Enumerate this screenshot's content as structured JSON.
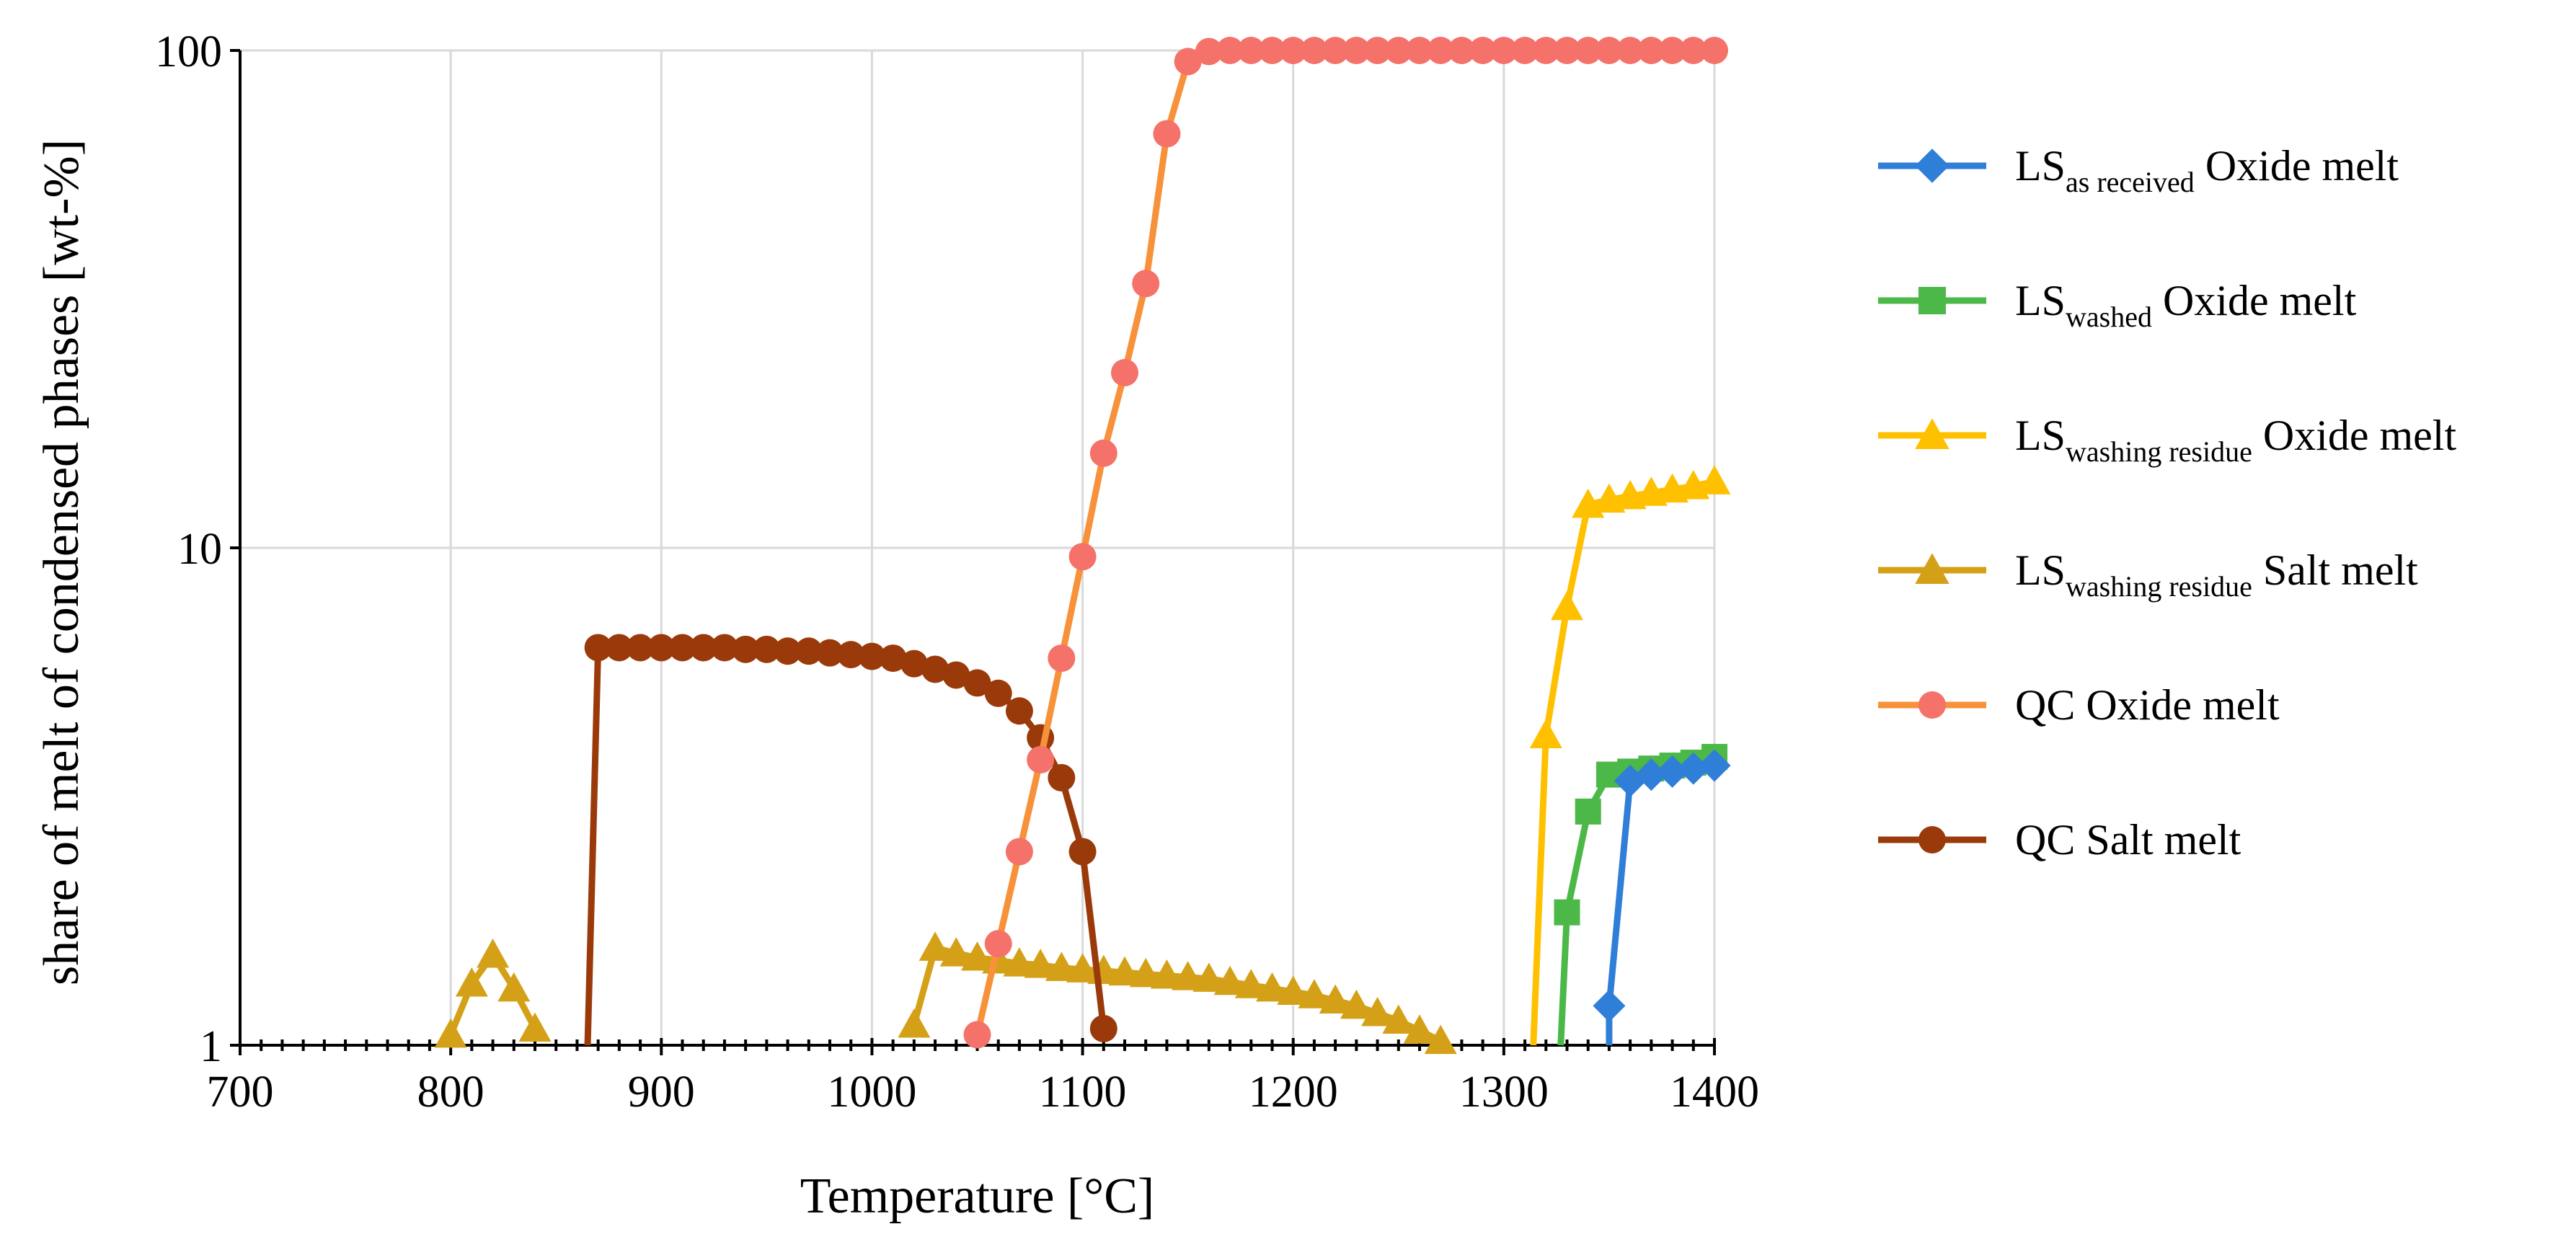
{
  "chart_data": {
    "type": "line",
    "xlabel": "Temperature  [°C]",
    "ylabel": "share of melt of condensed phases [wt-%]",
    "xlim": [
      700,
      1400
    ],
    "ylim": [
      1,
      100
    ],
    "yscale": "log",
    "x_ticks": [
      "700",
      "800",
      "900",
      "1000",
      "1100",
      "1200",
      "1300",
      "1400"
    ],
    "y_ticks": [
      "1",
      "10",
      "100"
    ],
    "grid": "vertical and horizontal major gridlines",
    "legend_position": "right",
    "series": [
      {
        "name": "LS as received Oxide melt",
        "name_main": "LS",
        "name_sub": "as received",
        "name_rest": " Oxide melt",
        "color": "#2F7ED8",
        "marker": "diamond",
        "x": [
          1350,
          1360,
          1370,
          1380,
          1390,
          1400
        ],
        "y": [
          1.2,
          3.4,
          3.5,
          3.55,
          3.6,
          3.65
        ]
      },
      {
        "name": "LS washed Oxide melt",
        "name_main": "LS",
        "name_sub": "washed",
        "name_rest": " Oxide melt",
        "color": "#4CB848",
        "marker": "square",
        "x": [
          1330,
          1340,
          1350,
          1360,
          1370,
          1380,
          1390,
          1400
        ],
        "y": [
          1.85,
          2.95,
          3.5,
          3.55,
          3.6,
          3.65,
          3.7,
          3.8
        ]
      },
      {
        "name": "LS washing residue Oxide melt",
        "name_main": "LS",
        "name_sub": "washing residue",
        "name_rest": " Oxide melt",
        "color": "#FFC000",
        "marker": "triangle",
        "x": [
          1320,
          1330,
          1340,
          1350,
          1360,
          1370,
          1380,
          1390,
          1400
        ],
        "y": [
          4.2,
          7.6,
          12.2,
          12.5,
          12.7,
          12.9,
          13.1,
          13.3,
          13.6
        ]
      },
      {
        "name": "LS washing residue Salt melt",
        "name_main": "LS",
        "name_sub": "washing residue",
        "name_rest": " Salt melt",
        "color": "#D4A017",
        "marker": "triangle",
        "x": [
          800,
          810,
          820,
          830,
          840,
          1020,
          1030,
          1040,
          1050,
          1060,
          1070,
          1080,
          1090,
          1100,
          1110,
          1120,
          1130,
          1140,
          1150,
          1160,
          1170,
          1180,
          1190,
          1200,
          1210,
          1220,
          1230,
          1240,
          1250,
          1260,
          1270
        ],
        "y": [
          1.05,
          1.33,
          1.52,
          1.3,
          1.08,
          1.1,
          1.57,
          1.53,
          1.5,
          1.48,
          1.46,
          1.45,
          1.43,
          1.42,
          1.41,
          1.4,
          1.39,
          1.38,
          1.37,
          1.36,
          1.34,
          1.32,
          1.3,
          1.28,
          1.26,
          1.23,
          1.2,
          1.16,
          1.12,
          1.07,
          1.02
        ]
      },
      {
        "name": "QC Oxide melt",
        "name_main": "QC Oxide melt",
        "name_sub": "",
        "name_rest": "",
        "color": "#F4726A",
        "line_color": "#F7923A",
        "marker": "circle",
        "x": [
          1050,
          1060,
          1070,
          1080,
          1090,
          1100,
          1110,
          1120,
          1130,
          1140,
          1150,
          1160,
          1170,
          1180,
          1190,
          1200,
          1210,
          1220,
          1230,
          1240,
          1250,
          1260,
          1270,
          1280,
          1290,
          1300,
          1310,
          1320,
          1330,
          1340,
          1350,
          1360,
          1370,
          1380,
          1390,
          1400
        ],
        "y": [
          1.05,
          1.6,
          2.45,
          3.75,
          6.0,
          9.6,
          15.5,
          22.5,
          34.0,
          68.0,
          95.0,
          99.5,
          100,
          100,
          100,
          100,
          100,
          100,
          100,
          100,
          100,
          100,
          100,
          100,
          100,
          100,
          100,
          100,
          100,
          100,
          100,
          100,
          100,
          100,
          100,
          100
        ]
      },
      {
        "name": "QC Salt melt",
        "name_main": "QC Salt melt",
        "name_sub": "",
        "name_rest": "",
        "color": "#9A3A0A",
        "marker": "circle",
        "x": [
          870,
          880,
          890,
          900,
          910,
          920,
          930,
          940,
          950,
          960,
          970,
          980,
          990,
          1000,
          1010,
          1020,
          1030,
          1040,
          1050,
          1060,
          1070,
          1080,
          1090,
          1100,
          1110
        ],
        "y": [
          6.3,
          6.3,
          6.3,
          6.3,
          6.3,
          6.3,
          6.3,
          6.25,
          6.25,
          6.2,
          6.2,
          6.15,
          6.1,
          6.05,
          6.0,
          5.85,
          5.7,
          5.55,
          5.35,
          5.1,
          4.7,
          4.15,
          3.45,
          2.45,
          1.08
        ]
      }
    ]
  }
}
